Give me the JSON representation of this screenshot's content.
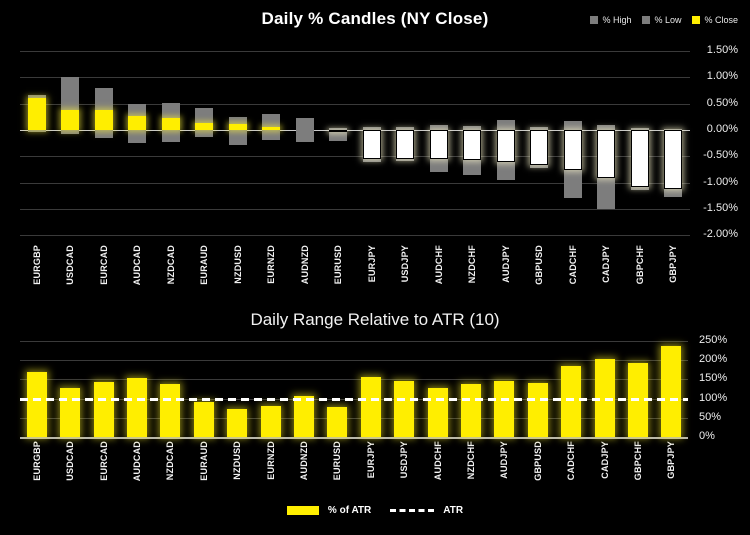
{
  "colors": {
    "background": "#000000",
    "bar_yellow": "#ffee00",
    "bar_gray": "#7d7d7d",
    "close_negative_fill": "#ffffff",
    "grid": "#3a3a3a",
    "zero_line": "#c9c9c9",
    "baseline": "#b5b5b5",
    "axis_text": "#eeeeee",
    "title_text": "#ffffff",
    "atr_line": "#ffffff"
  },
  "chart_data": [
    {
      "type": "bar",
      "subtype": "percent-candles-high-low-close",
      "title": "Daily % Candles (NY Close)",
      "legend_position": "top-right",
      "grid": true,
      "xlabel": "",
      "ylabel": "",
      "categories": [
        "EURGBP",
        "USDCAD",
        "EURCAD",
        "AUDCAD",
        "NZDCAD",
        "EURAUD",
        "NZDUSD",
        "EURNZD",
        "AUDNZD",
        "EURUSD",
        "EURJPY",
        "USDJPY",
        "AUDCHF",
        "NZDCHF",
        "AUDJPY",
        "GBPUSD",
        "CADCHF",
        "CADJPY",
        "GBPCHF",
        "GBPJPY"
      ],
      "series": [
        {
          "name": "% High",
          "color": "#7d7d7d",
          "values": [
            0.66,
            1.0,
            0.8,
            0.5,
            0.51,
            0.41,
            0.25,
            0.31,
            0.23,
            0.03,
            0.05,
            0.05,
            0.1,
            0.07,
            0.18,
            0.06,
            0.16,
            0.09,
            0.03,
            0.02
          ]
        },
        {
          "name": "% Low",
          "color": "#7d7d7d",
          "values": [
            -0.05,
            -0.08,
            -0.15,
            -0.25,
            -0.22,
            -0.13,
            -0.28,
            -0.19,
            -0.23,
            -0.22,
            -0.62,
            -0.6,
            -0.8,
            -0.85,
            -0.96,
            -0.72,
            -1.3,
            -1.5,
            -1.14,
            -1.27
          ]
        },
        {
          "name": "% Close",
          "color": "#ffee00",
          "values": [
            0.61,
            0.37,
            0.38,
            0.27,
            0.22,
            0.14,
            0.11,
            0.06,
            0.0,
            -0.05,
            -0.56,
            -0.55,
            -0.56,
            -0.58,
            -0.62,
            -0.67,
            -0.77,
            -0.91,
            -1.08,
            -1.13
          ]
        }
      ],
      "ylim": [
        -2.11,
        1.61
      ],
      "yticks": [
        {
          "label": "1.50%",
          "value": 1.5
        },
        {
          "label": "1.00%",
          "value": 1.0
        },
        {
          "label": "0.50%",
          "value": 0.5
        },
        {
          "label": "0.00%",
          "value": 0.0
        },
        {
          "label": "-0.50%",
          "value": -0.5
        },
        {
          "label": "-1.00%",
          "value": -1.0
        },
        {
          "label": "-1.50%",
          "value": -1.5
        },
        {
          "label": "-2.00%",
          "value": -2.0
        }
      ]
    },
    {
      "type": "bar",
      "title": "Daily Range Relative to ATR (10)",
      "legend_position": "bottom-center",
      "grid": true,
      "xlabel": "",
      "ylabel": "",
      "categories": [
        "EURGBP",
        "USDCAD",
        "EURCAD",
        "AUDCAD",
        "NZDCAD",
        "EURAUD",
        "NZDUSD",
        "EURNZD",
        "AUDNZD",
        "EURUSD",
        "EURJPY",
        "USDJPY",
        "AUDCHF",
        "NZDCHF",
        "AUDJPY",
        "GBPUSD",
        "CADCHF",
        "CADJPY",
        "GBPCHF",
        "GBPJPY"
      ],
      "series_name": "% of ATR",
      "values": [
        170,
        128,
        144,
        153,
        139,
        91,
        72,
        82,
        106,
        78,
        155,
        146,
        127,
        138,
        147,
        140,
        186,
        203,
        192,
        236
      ],
      "reference_line": {
        "name": "ATR",
        "value": 100,
        "style": "dashed"
      },
      "ylim": [
        0,
        260
      ],
      "yticks": [
        {
          "label": "250%",
          "value": 250
        },
        {
          "label": "200%",
          "value": 200
        },
        {
          "label": "150%",
          "value": 150
        },
        {
          "label": "100%",
          "value": 100
        },
        {
          "label": "50%",
          "value": 50
        },
        {
          "label": "0%",
          "value": 0
        }
      ],
      "legend": [
        "% of ATR",
        "ATR"
      ]
    }
  ]
}
